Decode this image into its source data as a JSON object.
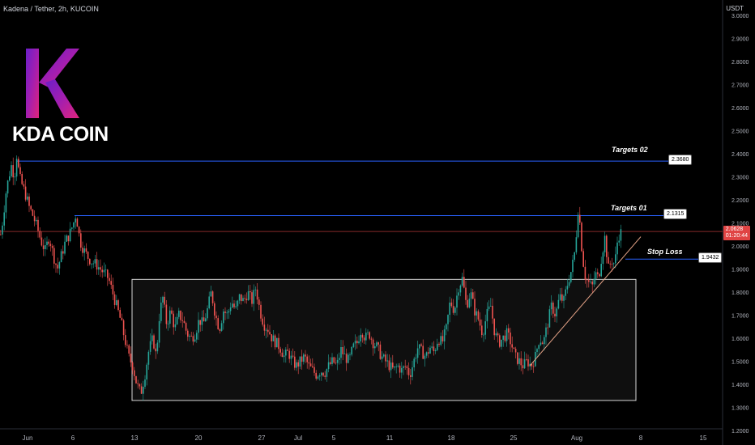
{
  "header": {
    "symbol_text": "Kadena / Tether, 2h, KUCOIN",
    "quote_unit": "USDT"
  },
  "logo": {
    "letter": "K",
    "coin_name": "KDA COIN",
    "colors": [
      "#6a1fc9",
      "#e0247c"
    ]
  },
  "annotations": {
    "targets_02": {
      "label": "Targets 02",
      "value": "2.3680"
    },
    "targets_01": {
      "label": "Targets 01",
      "value": "2.1315"
    },
    "stop_loss": {
      "label": "Stop Loss",
      "value": "1.9432"
    }
  },
  "current_price": {
    "value": "2.0628",
    "countdown": "01:20:44",
    "color": "#e04444"
  },
  "chart_data": {
    "type": "candlestick",
    "x_tick_labels": [
      "Jun",
      "6",
      "13",
      "20",
      "27",
      "Jul",
      "5",
      "11",
      "18",
      "25",
      "Aug",
      "8",
      "15"
    ],
    "y_tick_labels": [
      "1.2000",
      "1.3000",
      "1.4000",
      "1.5000",
      "1.6000",
      "1.7000",
      "1.8000",
      "1.9000",
      "2.0000",
      "2.1000",
      "2.2000",
      "2.3000",
      "2.4000",
      "2.5000",
      "2.6000",
      "2.7000",
      "2.8000",
      "2.9000",
      "3.0000"
    ],
    "ylim": [
      1.2,
      3.0
    ],
    "horizontal_levels": [
      {
        "label": "Targets 02",
        "value": 2.368,
        "color": "#2962ff"
      },
      {
        "label": "Targets 01",
        "value": 2.1315,
        "color": "#2962ff"
      },
      {
        "label": "Stop Loss",
        "value": 1.9432,
        "color": "#2962ff"
      },
      {
        "label": "current",
        "value": 2.0628,
        "color": "#e04444"
      }
    ],
    "range_box": {
      "y_low": 1.33,
      "y_high": 1.855
    },
    "trendline": {
      "from": 1.48,
      "to": 2.04
    },
    "price_path": [
      [
        0,
        2.05
      ],
      [
        3,
        2.12
      ],
      [
        6,
        2.22
      ],
      [
        9,
        2.28
      ],
      [
        13,
        2.35
      ],
      [
        17,
        2.3
      ],
      [
        20,
        2.4
      ],
      [
        23,
        2.3
      ],
      [
        27,
        2.26
      ],
      [
        31,
        2.22
      ],
      [
        35,
        2.17
      ],
      [
        40,
        2.13
      ],
      [
        45,
        2.08
      ],
      [
        50,
        2.02
      ],
      [
        55,
        1.98
      ],
      [
        60,
        2.04
      ],
      [
        65,
        1.96
      ],
      [
        70,
        1.9
      ],
      [
        75,
        1.96
      ],
      [
        80,
        2.02
      ],
      [
        85,
        2.05
      ],
      [
        90,
        2.1
      ],
      [
        93,
        2.14
      ],
      [
        98,
        2.02
      ],
      [
        103,
        1.98
      ],
      [
        108,
        1.95
      ],
      [
        113,
        1.93
      ],
      [
        118,
        1.92
      ],
      [
        123,
        1.9
      ],
      [
        128,
        1.88
      ],
      [
        133,
        1.86
      ],
      [
        138,
        1.8
      ],
      [
        143,
        1.74
      ],
      [
        148,
        1.68
      ],
      [
        153,
        1.6
      ],
      [
        158,
        1.52
      ],
      [
        163,
        1.48
      ],
      [
        168,
        1.4
      ],
      [
        173,
        1.36
      ],
      [
        178,
        1.44
      ],
      [
        183,
        1.55
      ],
      [
        188,
        1.6
      ],
      [
        192,
        1.52
      ],
      [
        196,
        1.7
      ],
      [
        200,
        1.78
      ],
      [
        205,
        1.66
      ],
      [
        210,
        1.72
      ],
      [
        215,
        1.64
      ],
      [
        220,
        1.7
      ],
      [
        225,
        1.68
      ],
      [
        230,
        1.62
      ],
      [
        235,
        1.6
      ],
      [
        240,
        1.62
      ],
      [
        245,
        1.68
      ],
      [
        250,
        1.66
      ],
      [
        255,
        1.72
      ],
      [
        260,
        1.8
      ],
      [
        265,
        1.7
      ],
      [
        270,
        1.64
      ],
      [
        275,
        1.72
      ],
      [
        280,
        1.7
      ],
      [
        285,
        1.76
      ],
      [
        290,
        1.72
      ],
      [
        295,
        1.78
      ],
      [
        300,
        1.76
      ],
      [
        305,
        1.8
      ],
      [
        310,
        1.76
      ],
      [
        315,
        1.82
      ],
      [
        320,
        1.72
      ],
      [
        325,
        1.66
      ],
      [
        330,
        1.64
      ],
      [
        335,
        1.6
      ],
      [
        340,
        1.58
      ],
      [
        345,
        1.56
      ],
      [
        350,
        1.52
      ],
      [
        355,
        1.54
      ],
      [
        360,
        1.5
      ],
      [
        365,
        1.48
      ],
      [
        370,
        1.5
      ],
      [
        375,
        1.52
      ],
      [
        380,
        1.48
      ],
      [
        385,
        1.46
      ],
      [
        390,
        1.44
      ],
      [
        395,
        1.46
      ],
      [
        400,
        1.45
      ],
      [
        405,
        1.48
      ],
      [
        410,
        1.5
      ],
      [
        415,
        1.48
      ],
      [
        420,
        1.55
      ],
      [
        425,
        1.52
      ],
      [
        430,
        1.5
      ],
      [
        435,
        1.56
      ],
      [
        440,
        1.58
      ],
      [
        445,
        1.64
      ],
      [
        450,
        1.6
      ],
      [
        455,
        1.62
      ],
      [
        460,
        1.58
      ],
      [
        465,
        1.56
      ],
      [
        470,
        1.52
      ],
      [
        475,
        1.5
      ],
      [
        480,
        1.48
      ],
      [
        485,
        1.46
      ],
      [
        490,
        1.48
      ],
      [
        495,
        1.46
      ],
      [
        500,
        1.48
      ],
      [
        505,
        1.44
      ],
      [
        510,
        1.5
      ],
      [
        515,
        1.56
      ],
      [
        520,
        1.54
      ],
      [
        525,
        1.52
      ],
      [
        530,
        1.56
      ],
      [
        535,
        1.54
      ],
      [
        540,
        1.6
      ],
      [
        545,
        1.58
      ],
      [
        550,
        1.64
      ],
      [
        555,
        1.76
      ],
      [
        560,
        1.72
      ],
      [
        565,
        1.82
      ],
      [
        570,
        1.86
      ],
      [
        575,
        1.74
      ],
      [
        580,
        1.8
      ],
      [
        585,
        1.72
      ],
      [
        590,
        1.68
      ],
      [
        595,
        1.62
      ],
      [
        600,
        1.7
      ],
      [
        605,
        1.74
      ],
      [
        610,
        1.62
      ],
      [
        615,
        1.58
      ],
      [
        620,
        1.6
      ],
      [
        625,
        1.62
      ],
      [
        630,
        1.58
      ],
      [
        635,
        1.52
      ],
      [
        640,
        1.5
      ],
      [
        645,
        1.48
      ],
      [
        650,
        1.5
      ],
      [
        655,
        1.48
      ],
      [
        660,
        1.52
      ],
      [
        665,
        1.6
      ],
      [
        670,
        1.58
      ],
      [
        675,
        1.66
      ],
      [
        680,
        1.74
      ],
      [
        685,
        1.7
      ],
      [
        690,
        1.78
      ],
      [
        695,
        1.76
      ],
      [
        700,
        1.84
      ],
      [
        705,
        1.9
      ],
      [
        710,
        2.0
      ],
      [
        712,
        2.18
      ],
      [
        715,
        2.1
      ],
      [
        718,
        1.96
      ],
      [
        722,
        1.86
      ],
      [
        726,
        1.84
      ],
      [
        730,
        1.82
      ],
      [
        734,
        1.88
      ],
      [
        738,
        1.86
      ],
      [
        742,
        1.96
      ],
      [
        746,
        2.04
      ],
      [
        750,
        1.9
      ],
      [
        754,
        1.94
      ],
      [
        758,
        1.92
      ],
      [
        762,
        2.04
      ],
      [
        766,
        2.06
      ]
    ]
  }
}
